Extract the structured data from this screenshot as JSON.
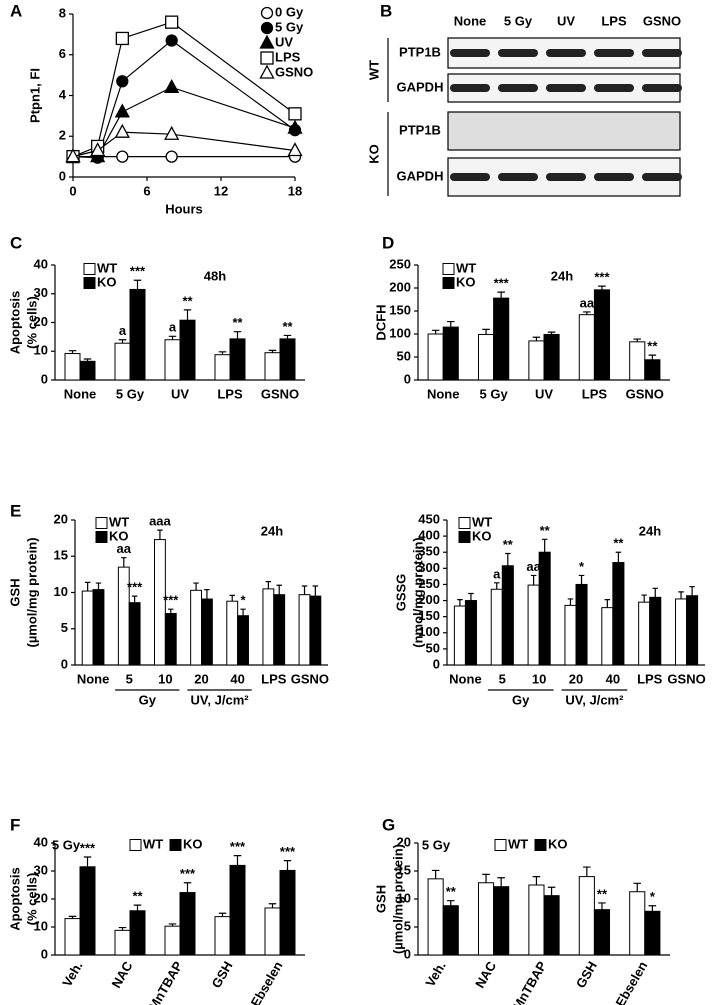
{
  "chart_data": [
    {
      "type": "line",
      "panel": "A",
      "ylabel": [
        "Ptpn1, FI"
      ],
      "xlabel": "Hours",
      "x": [
        0,
        2,
        4,
        8,
        18
      ],
      "xlim": [
        0,
        18
      ],
      "xticks": [
        0,
        6,
        12,
        18
      ],
      "ylim": [
        0,
        8
      ],
      "yticks": [
        0,
        2,
        4,
        6,
        8
      ],
      "legend": "top-right",
      "series": [
        {
          "name": "0 Gy",
          "marker": "circle",
          "color": "#ffffff",
          "values": [
            1,
            1,
            1,
            1,
            1
          ]
        },
        {
          "name": "5 Gy",
          "marker": "circle",
          "color": "#000000",
          "values": [
            1,
            0.95,
            4.7,
            6.7,
            2.3
          ]
        },
        {
          "name": "UV",
          "marker": "triangle",
          "color": "#000000",
          "values": [
            1,
            1,
            3.2,
            4.4,
            2.4
          ]
        },
        {
          "name": "LPS",
          "marker": "square",
          "color": "#ffffff",
          "values": [
            1,
            1.5,
            6.8,
            7.6,
            3.1
          ]
        },
        {
          "name": "GSNO",
          "marker": "triangle",
          "color": "#ffffff",
          "values": [
            1,
            1.3,
            2.2,
            2.1,
            1.3
          ]
        }
      ]
    },
    {
      "type": "bar",
      "panel": "C",
      "subtitle": "48h",
      "ylabel": [
        "Apoptosis",
        "(% cells)"
      ],
      "legend": "top-left",
      "categories": [
        "None",
        "5 Gy",
        "UV",
        "LPS",
        "GSNO"
      ],
      "ylim": [
        0,
        40
      ],
      "yticks": [
        0,
        10,
        20,
        30,
        40
      ],
      "series": [
        {
          "name": "WT",
          "color": "#ffffff",
          "values": [
            9.2,
            12.8,
            14,
            8.8,
            9.5
          ],
          "errors": [
            1,
            1.2,
            1.2,
            1,
            0.8
          ],
          "annotations": [
            null,
            "a",
            "a",
            null,
            null
          ]
        },
        {
          "name": "KO",
          "color": "#000000",
          "values": [
            6.5,
            31.5,
            20.8,
            14.3,
            14.3
          ],
          "errors": [
            0.8,
            3.2,
            3.6,
            2.5,
            1.2
          ],
          "annotations": [
            null,
            "***",
            "**",
            "**",
            "**"
          ]
        }
      ]
    },
    {
      "type": "bar",
      "panel": "D",
      "subtitle": "24h",
      "ylabel": [
        "DCFH"
      ],
      "legend": "top-left",
      "categories": [
        "None",
        "5 Gy",
        "UV",
        "LPS",
        "GSNO"
      ],
      "ylim": [
        0,
        250
      ],
      "yticks": [
        0,
        50,
        100,
        150,
        200,
        250
      ],
      "series": [
        {
          "name": "WT",
          "color": "#ffffff",
          "values": [
            100,
            99,
            85,
            142,
            83
          ],
          "errors": [
            8,
            11,
            8,
            6,
            6
          ],
          "annotations": [
            null,
            null,
            null,
            "aa",
            null
          ]
        },
        {
          "name": "KO",
          "color": "#000000",
          "values": [
            115,
            178,
            99,
            196,
            44
          ],
          "errors": [
            12,
            13,
            5,
            8,
            10
          ],
          "annotations": [
            null,
            "***",
            null,
            "***",
            "**"
          ]
        }
      ]
    },
    {
      "type": "bar",
      "panel": "E",
      "subtitle": "24h",
      "ylabel": [
        "GSH",
        "(µmol/mg protein)"
      ],
      "legend": "top-left",
      "categories": [
        "None",
        "5",
        "10",
        "20",
        "40",
        "LPS",
        "GSNO"
      ],
      "ylim": [
        0,
        20
      ],
      "yticks": [
        0,
        5,
        10,
        15,
        20
      ],
      "groups": [
        {
          "label": "Gy",
          "categories": [
            "5",
            "10"
          ]
        },
        {
          "label": "UV, J/cm²",
          "categories": [
            "20",
            "40"
          ]
        }
      ],
      "series": [
        {
          "name": "WT",
          "color": "#ffffff",
          "values": [
            10.2,
            13.5,
            17.3,
            10.3,
            8.8,
            10.5,
            9.7
          ],
          "errors": [
            1.2,
            1.3,
            1.3,
            1,
            0.8,
            1,
            1.2
          ],
          "annotations": [
            null,
            "aa",
            "aaa",
            null,
            null,
            null,
            null
          ]
        },
        {
          "name": "KO",
          "color": "#000000",
          "values": [
            10.4,
            8.6,
            7.1,
            9.1,
            6.8,
            9.7,
            9.5
          ],
          "errors": [
            0.9,
            0.9,
            0.6,
            1.3,
            0.9,
            1.3,
            1.4
          ],
          "annotations": [
            null,
            "***",
            "***",
            null,
            "*",
            null,
            null
          ]
        }
      ]
    },
    {
      "type": "bar",
      "subtitle": "24h",
      "ylabel": [
        "GSSG",
        "(nmol/mg protein)"
      ],
      "legend": "top-left",
      "categories": [
        "None",
        "5",
        "10",
        "20",
        "40",
        "LPS",
        "GSNO"
      ],
      "ylim": [
        0,
        450
      ],
      "yticks": [
        0,
        50,
        100,
        150,
        200,
        250,
        300,
        350,
        400,
        450
      ],
      "groups": [
        {
          "label": "Gy",
          "categories": [
            "5",
            "10"
          ]
        },
        {
          "label": "UV, J/cm²",
          "categories": [
            "20",
            "40"
          ]
        }
      ],
      "series": [
        {
          "name": "WT",
          "color": "#ffffff",
          "values": [
            183,
            235,
            248,
            185,
            178,
            195,
            205
          ],
          "errors": [
            20,
            20,
            30,
            20,
            25,
            22,
            22
          ],
          "annotations": [
            null,
            "a",
            "aa",
            null,
            null,
            null,
            null
          ]
        },
        {
          "name": "KO",
          "color": "#000000",
          "values": [
            200,
            308,
            350,
            250,
            318,
            210,
            215
          ],
          "errors": [
            22,
            38,
            40,
            28,
            32,
            28,
            28
          ],
          "annotations": [
            null,
            "**",
            "**",
            "*",
            "**",
            null,
            null
          ]
        }
      ]
    },
    {
      "type": "bar",
      "panel": "F",
      "subtitle": "5 Gy",
      "ylabel": [
        "Apoptosis",
        "(% cells)"
      ],
      "legend": "top",
      "xtick_rotation": -60,
      "categories": [
        "Veh.",
        "NAC",
        "MnTBAP",
        "GSH",
        "Ebselen"
      ],
      "ylim": [
        0,
        40
      ],
      "yticks": [
        0,
        10,
        20,
        30,
        40
      ],
      "series": [
        {
          "name": "WT",
          "color": "#ffffff",
          "values": [
            13,
            8.8,
            10.3,
            13.7,
            16.8
          ],
          "errors": [
            0.8,
            1,
            0.8,
            1.2,
            1.5
          ],
          "annotations": [
            null,
            null,
            null,
            null,
            null
          ]
        },
        {
          "name": "KO",
          "color": "#000000",
          "values": [
            31.5,
            15.8,
            22.3,
            32,
            30.2
          ],
          "errors": [
            3.5,
            2,
            3.5,
            3.5,
            3.5
          ],
          "annotations": [
            "***",
            "**",
            "***",
            "***",
            "***"
          ]
        }
      ]
    },
    {
      "type": "bar",
      "panel": "G",
      "subtitle": "5 Gy",
      "ylabel": [
        "GSH",
        "(µmol/mg protein)"
      ],
      "legend": "top",
      "xtick_rotation": -60,
      "categories": [
        "Veh.",
        "NAC",
        "MnTBAP",
        "GSH",
        "Ebselen"
      ],
      "ylim": [
        0,
        20
      ],
      "yticks": [
        0,
        5,
        10,
        15,
        20
      ],
      "series": [
        {
          "name": "WT",
          "color": "#ffffff",
          "values": [
            13.6,
            12.9,
            12.5,
            14,
            11.3
          ],
          "errors": [
            1.5,
            1.5,
            1.5,
            1.7,
            1.5
          ],
          "annotations": [
            null,
            null,
            null,
            null,
            null
          ]
        },
        {
          "name": "KO",
          "color": "#000000",
          "values": [
            8.8,
            12.2,
            10.6,
            8.1,
            7.8
          ],
          "errors": [
            0.9,
            1.6,
            1.5,
            1.2,
            1.0
          ],
          "annotations": [
            "**",
            null,
            null,
            "**",
            "*"
          ]
        }
      ]
    }
  ],
  "blot": {
    "panel": "B",
    "lanes": [
      "None",
      "5 Gy",
      "UV",
      "LPS",
      "GSNO"
    ],
    "groups": [
      {
        "label": "WT",
        "rows": [
          "PTP1B",
          "GAPDH"
        ]
      },
      {
        "label": "KO",
        "rows": [
          "PTP1B",
          "GAPDH"
        ]
      }
    ]
  }
}
